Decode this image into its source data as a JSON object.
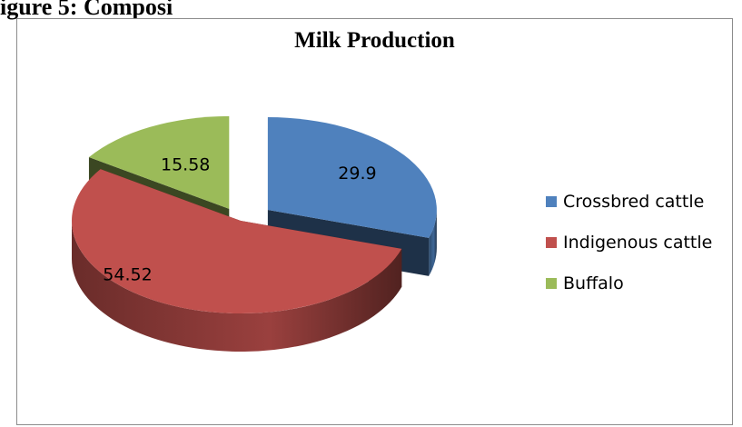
{
  "page": {
    "heading_fragment": "igure 5: Composi"
  },
  "chart_data": {
    "type": "pie",
    "title": "Milk Production",
    "categories": [
      "Crossbred cattle",
      "Indigenous cattle",
      "Buffalo"
    ],
    "values": [
      29.9,
      54.52,
      15.58
    ],
    "colors": [
      "#4f81bd",
      "#c0504d",
      "#9bbb59"
    ],
    "data_labels": [
      "29.9",
      "54.52",
      "15.58"
    ],
    "legend_position": "right",
    "style": "3d-exploded"
  }
}
